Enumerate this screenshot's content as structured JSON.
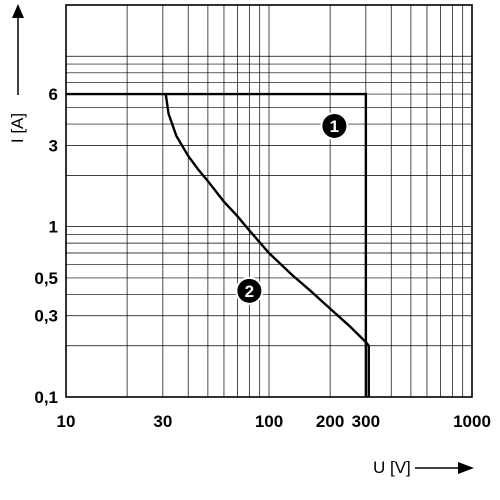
{
  "chart_data": {
    "type": "line",
    "title": "",
    "xlabel": "U [V]",
    "ylabel": "I [A]",
    "x_scale": "log",
    "y_scale": "log",
    "xlim": [
      10,
      1000
    ],
    "ylim": [
      0.1,
      20
    ],
    "grid": true,
    "x_ticks": [
      "10",
      "30",
      "100",
      "200",
      "300",
      "1000"
    ],
    "y_ticks": [
      "0,1",
      "0,3",
      "0,5",
      "1",
      "3",
      "6"
    ],
    "series": [
      {
        "name": "1",
        "x": [
          10,
          300,
          300
        ],
        "y": [
          6,
          6,
          0.1
        ]
      },
      {
        "name": "2",
        "x": [
          31,
          32,
          35,
          40,
          45,
          50,
          60,
          70,
          80,
          100,
          130,
          160,
          200,
          250,
          300,
          310,
          310
        ],
        "y": [
          6,
          4.6,
          3.4,
          2.6,
          2.15,
          1.85,
          1.4,
          1.15,
          0.95,
          0.7,
          0.52,
          0.42,
          0.33,
          0.26,
          0.21,
          0.2,
          0.1
        ]
      }
    ],
    "colors": {
      "line": "#000000",
      "grid": "#000000",
      "badge": "#000000"
    }
  }
}
